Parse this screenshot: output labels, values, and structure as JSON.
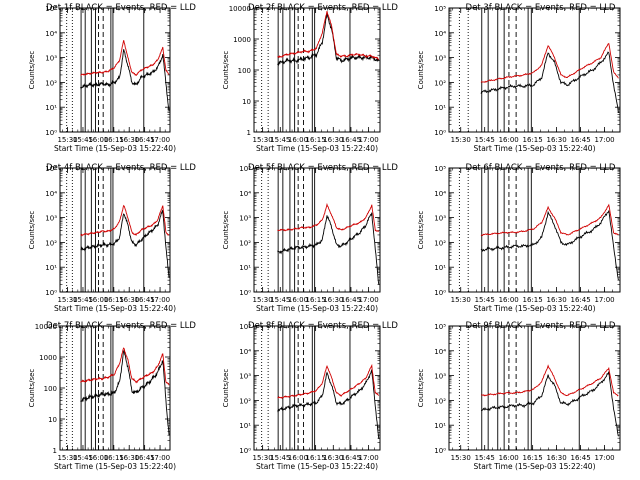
{
  "chart_data": [
    {
      "type": "line",
      "title": "Det 1f BLACK = Events, RED = LLD",
      "xlabel": "Start Time (15-Sep-03 15:22:40)",
      "ylabel": "Counts/sec",
      "yscale": "log",
      "ylim_exp": [
        0,
        5
      ],
      "ytick_labels": [
        "10⁰",
        "10¹",
        "10²",
        "10³",
        "10⁴",
        "10⁵"
      ],
      "x_ticks": [
        "15:30",
        "15:45",
        "16:00",
        "16:15",
        "16:30",
        "16:45",
        "17:00"
      ],
      "series": [
        {
          "name": "BLACK",
          "color": "#000000",
          "x": [
            20,
            28,
            36,
            41,
            47,
            53,
            58,
            62,
            66,
            70,
            74,
            79,
            84,
            90,
            95,
            100,
            103,
            106
          ],
          "y": [
            1.8,
            1.9,
            1.9,
            1.95,
            1.9,
            2.0,
            2.2,
            3.3,
            2.7,
            2.0,
            1.9,
            2.2,
            2.3,
            2.4,
            2.6,
            3.1,
            2.0,
            0.8
          ]
        },
        {
          "name": "RED",
          "color": "#d00000",
          "x": [
            20,
            28,
            36,
            41,
            47,
            53,
            58,
            62,
            66,
            70,
            74,
            79,
            84,
            90,
            95,
            100,
            103,
            106
          ],
          "y": [
            2.3,
            2.35,
            2.4,
            2.4,
            2.45,
            2.6,
            2.9,
            3.7,
            3.0,
            2.4,
            2.3,
            2.5,
            2.6,
            2.7,
            2.9,
            3.4,
            2.5,
            2.3
          ]
        }
      ]
    },
    {
      "type": "line",
      "title": "Det 2f BLACK = Events, RED = LLD",
      "xlabel": "Start Time (15-Sep-03 15:22:40)",
      "ylabel": "Counts/sec",
      "yscale": "log",
      "ylim_exp": [
        0,
        4
      ],
      "ytick_labels": [
        "1",
        "10",
        "100",
        "1000",
        "10000"
      ],
      "x_ticks": [
        "15:30",
        "15:45",
        "16:00",
        "16:15",
        "16:30",
        "16:45",
        "17:00"
      ],
      "series": [
        {
          "name": "BLACK",
          "color": "#000000",
          "x": [
            20,
            28,
            36,
            41,
            47,
            53,
            58,
            62,
            66,
            70,
            74,
            79,
            84,
            90,
            95,
            100,
            103,
            106
          ],
          "y": [
            2.2,
            2.3,
            2.3,
            2.35,
            2.4,
            2.5,
            2.9,
            3.8,
            3.3,
            2.4,
            2.3,
            2.35,
            2.4,
            2.4,
            2.4,
            2.4,
            2.35,
            2.3
          ]
        },
        {
          "name": "RED",
          "color": "#d00000",
          "x": [
            20,
            28,
            36,
            41,
            47,
            53,
            58,
            62,
            66,
            70,
            74,
            79,
            84,
            90,
            95,
            100,
            103,
            106
          ],
          "y": [
            2.4,
            2.5,
            2.55,
            2.6,
            2.6,
            2.7,
            3.2,
            3.9,
            3.4,
            2.5,
            2.45,
            2.45,
            2.5,
            2.5,
            2.45,
            2.45,
            2.4,
            2.35
          ]
        }
      ]
    },
    {
      "type": "line",
      "title": "Det 3f BLACK = Events, RED = LLD",
      "xlabel": "Start Time (15-Sep-03 15:22:40)",
      "ylabel": "Counts/sec",
      "yscale": "log",
      "ylim_exp": [
        0,
        5
      ],
      "ytick_labels": [
        "10⁰",
        "10¹",
        "10²",
        "10³",
        "10⁴",
        "10⁵"
      ],
      "x_ticks": [
        "15:30",
        "15:45",
        "16:00",
        "16:15",
        "16:30",
        "16:45",
        "17:00"
      ],
      "series": [
        {
          "name": "BLACK",
          "color": "#000000",
          "x": [
            20,
            28,
            36,
            41,
            47,
            53,
            58,
            62,
            66,
            70,
            74,
            79,
            84,
            90,
            95,
            100,
            103,
            106
          ],
          "y": [
            1.6,
            1.7,
            1.8,
            1.85,
            1.85,
            1.9,
            2.2,
            3.2,
            2.8,
            2.0,
            1.9,
            2.1,
            2.3,
            2.5,
            2.8,
            3.2,
            1.9,
            0.8
          ]
        },
        {
          "name": "RED",
          "color": "#d00000",
          "x": [
            20,
            28,
            36,
            41,
            47,
            53,
            58,
            62,
            66,
            70,
            74,
            79,
            84,
            90,
            95,
            100,
            103,
            106
          ],
          "y": [
            2.0,
            2.1,
            2.2,
            2.25,
            2.3,
            2.4,
            2.7,
            3.5,
            3.0,
            2.3,
            2.2,
            2.4,
            2.6,
            2.8,
            3.0,
            3.6,
            2.4,
            2.2
          ]
        }
      ]
    },
    {
      "type": "line",
      "title": "Det 4f BLACK = Events, RED = LLD",
      "xlabel": "Start Time (15-Sep-03 15:22:40)",
      "ylabel": "Counts/sec",
      "yscale": "log",
      "ylim_exp": [
        0,
        5
      ],
      "ytick_labels": [
        "10⁰",
        "10¹",
        "10²",
        "10³",
        "10⁴",
        "10⁵"
      ],
      "x_ticks": [
        "15:30",
        "15:45",
        "16:00",
        "16:15",
        "16:30",
        "16:45",
        "17:00"
      ],
      "series": [
        {
          "name": "BLACK",
          "color": "#000000",
          "x": [
            20,
            28,
            36,
            41,
            47,
            53,
            58,
            62,
            66,
            70,
            74,
            79,
            84,
            90,
            95,
            100,
            103,
            106
          ],
          "y": [
            1.7,
            1.8,
            1.85,
            1.9,
            1.9,
            1.95,
            2.2,
            3.2,
            2.7,
            2.0,
            1.9,
            2.1,
            2.3,
            2.5,
            2.7,
            3.3,
            1.8,
            0.6
          ]
        },
        {
          "name": "RED",
          "color": "#d00000",
          "x": [
            20,
            28,
            36,
            41,
            47,
            53,
            58,
            62,
            66,
            70,
            74,
            79,
            84,
            90,
            95,
            100,
            103,
            106
          ],
          "y": [
            2.3,
            2.35,
            2.4,
            2.45,
            2.45,
            2.55,
            2.85,
            3.5,
            3.0,
            2.4,
            2.3,
            2.5,
            2.6,
            2.7,
            2.9,
            3.5,
            2.4,
            2.3
          ]
        }
      ]
    },
    {
      "type": "line",
      "title": "Det 5f BLACK = Events, RED = LLD",
      "xlabel": "Start Time (15-Sep-03 15:22:40)",
      "ylabel": "Counts/sec",
      "yscale": "log",
      "ylim_exp": [
        0,
        5
      ],
      "ytick_labels": [
        "10⁰",
        "10¹",
        "10²",
        "10³",
        "10⁴",
        "10⁵"
      ],
      "x_ticks": [
        "15:30",
        "15:45",
        "16:00",
        "16:15",
        "16:30",
        "16:45",
        "17:00"
      ],
      "series": [
        {
          "name": "BLACK",
          "color": "#000000",
          "x": [
            20,
            28,
            36,
            41,
            47,
            53,
            58,
            62,
            66,
            70,
            74,
            79,
            84,
            90,
            95,
            100,
            103,
            106
          ],
          "y": [
            1.6,
            1.7,
            1.8,
            1.8,
            1.85,
            1.9,
            2.1,
            3.1,
            2.6,
            1.9,
            1.85,
            2.0,
            2.2,
            2.4,
            2.7,
            3.2,
            1.7,
            0.3
          ]
        },
        {
          "name": "RED",
          "color": "#d00000",
          "x": [
            20,
            28,
            36,
            41,
            47,
            53,
            58,
            62,
            66,
            70,
            74,
            79,
            84,
            90,
            95,
            100,
            103,
            106
          ],
          "y": [
            2.5,
            2.5,
            2.55,
            2.6,
            2.6,
            2.7,
            2.9,
            3.5,
            3.1,
            2.6,
            2.5,
            2.6,
            2.7,
            2.8,
            3.0,
            3.5,
            2.5,
            2.45
          ]
        }
      ]
    },
    {
      "type": "line",
      "title": "Det 6f BLACK = Events, RED = LLD",
      "xlabel": "Start Time (15-Sep-03 15:22:40)",
      "ylabel": "Counts/sec",
      "yscale": "log",
      "ylim_exp": [
        0,
        5
      ],
      "ytick_labels": [
        "10⁰",
        "10¹",
        "10²",
        "10³",
        "10⁴",
        "10⁵"
      ],
      "x_ticks": [
        "15:30",
        "15:45",
        "16:00",
        "16:15",
        "16:30",
        "16:45",
        "17:00"
      ],
      "series": [
        {
          "name": "BLACK",
          "color": "#000000",
          "x": [
            20,
            28,
            36,
            41,
            47,
            53,
            58,
            62,
            66,
            70,
            74,
            79,
            84,
            90,
            95,
            100,
            103,
            106
          ],
          "y": [
            1.7,
            1.75,
            1.8,
            1.85,
            1.85,
            1.9,
            2.2,
            3.2,
            2.7,
            2.0,
            1.9,
            2.1,
            2.3,
            2.5,
            2.8,
            3.3,
            1.8,
            0.5
          ]
        },
        {
          "name": "RED",
          "color": "#d00000",
          "x": [
            20,
            28,
            36,
            41,
            47,
            53,
            58,
            62,
            66,
            70,
            74,
            79,
            84,
            90,
            95,
            100,
            103,
            106
          ],
          "y": [
            2.3,
            2.35,
            2.4,
            2.4,
            2.45,
            2.55,
            2.8,
            3.4,
            3.0,
            2.4,
            2.3,
            2.45,
            2.6,
            2.8,
            3.0,
            3.5,
            2.4,
            2.3
          ]
        }
      ]
    },
    {
      "type": "line",
      "title": "Det 7f BLACK = Events, RED = LLD",
      "xlabel": "Start Time (15-Sep-03 15:22:40)",
      "ylabel": "Counts/sec",
      "yscale": "log",
      "ylim_exp": [
        0,
        4
      ],
      "ytick_labels": [
        "1",
        "10",
        "100",
        "1000",
        "10000"
      ],
      "x_ticks": [
        "15:30",
        "15:45",
        "16:00",
        "16:15",
        "16:30",
        "16:45",
        "17:00"
      ],
      "series": [
        {
          "name": "BLACK",
          "color": "#000000",
          "x": [
            20,
            28,
            36,
            41,
            47,
            53,
            58,
            62,
            66,
            70,
            74,
            79,
            84,
            90,
            95,
            100,
            103,
            106
          ],
          "y": [
            1.6,
            1.7,
            1.75,
            1.8,
            1.8,
            1.85,
            2.2,
            3.2,
            2.7,
            1.9,
            1.85,
            2.0,
            2.1,
            2.3,
            2.5,
            2.9,
            1.6,
            0.5
          ]
        },
        {
          "name": "RED",
          "color": "#d00000",
          "x": [
            20,
            28,
            36,
            41,
            47,
            53,
            58,
            62,
            66,
            70,
            74,
            79,
            84,
            90,
            95,
            100,
            103,
            106
          ],
          "y": [
            2.2,
            2.25,
            2.3,
            2.3,
            2.35,
            2.45,
            2.8,
            3.3,
            2.9,
            2.3,
            2.2,
            2.3,
            2.4,
            2.5,
            2.7,
            3.1,
            2.2,
            2.1
          ]
        }
      ]
    },
    {
      "type": "line",
      "title": "Det 8f BLACK = Events, RED = LLD",
      "xlabel": "Start Time (15-Sep-03 15:22:40)",
      "ylabel": "Counts/sec",
      "yscale": "log",
      "ylim_exp": [
        0,
        5
      ],
      "ytick_labels": [
        "10⁰",
        "10¹",
        "10²",
        "10³",
        "10⁴",
        "10⁵"
      ],
      "x_ticks": [
        "15:30",
        "15:45",
        "16:00",
        "16:15",
        "16:30",
        "16:45",
        "17:00"
      ],
      "series": [
        {
          "name": "BLACK",
          "color": "#000000",
          "x": [
            20,
            28,
            36,
            41,
            47,
            53,
            58,
            62,
            66,
            70,
            74,
            79,
            84,
            90,
            95,
            100,
            103,
            106
          ],
          "y": [
            1.6,
            1.7,
            1.8,
            1.8,
            1.85,
            1.9,
            2.2,
            3.1,
            2.6,
            1.9,
            1.85,
            2.0,
            2.2,
            2.4,
            2.7,
            3.2,
            1.8,
            0.4
          ]
        },
        {
          "name": "RED",
          "color": "#d00000",
          "x": [
            20,
            28,
            36,
            41,
            47,
            53,
            58,
            62,
            66,
            70,
            74,
            79,
            84,
            90,
            95,
            100,
            103,
            106
          ],
          "y": [
            2.1,
            2.15,
            2.2,
            2.25,
            2.3,
            2.4,
            2.7,
            3.4,
            2.9,
            2.3,
            2.2,
            2.35,
            2.5,
            2.7,
            2.9,
            3.4,
            2.3,
            2.2
          ]
        }
      ]
    },
    {
      "type": "line",
      "title": "Det 9f BLACK = Events, RED = LLD",
      "xlabel": "Start Time (15-Sep-03 15:22:40)",
      "ylabel": "Counts/sec",
      "yscale": "log",
      "ylim_exp": [
        0,
        5
      ],
      "ytick_labels": [
        "10⁰",
        "10¹",
        "10²",
        "10³",
        "10⁴",
        "10⁵"
      ],
      "x_ticks": [
        "15:30",
        "15:45",
        "16:00",
        "16:15",
        "16:30",
        "16:45",
        "17:00"
      ],
      "series": [
        {
          "name": "BLACK",
          "color": "#000000",
          "x": [
            20,
            28,
            36,
            41,
            47,
            53,
            58,
            62,
            66,
            70,
            74,
            79,
            84,
            90,
            95,
            100,
            103,
            106
          ],
          "y": [
            1.6,
            1.7,
            1.75,
            1.8,
            1.8,
            1.9,
            2.2,
            3.0,
            2.6,
            1.9,
            1.85,
            2.0,
            2.2,
            2.4,
            2.7,
            3.1,
            1.7,
            0.5
          ]
        },
        {
          "name": "RED",
          "color": "#d00000",
          "x": [
            20,
            28,
            36,
            41,
            47,
            53,
            58,
            62,
            66,
            70,
            74,
            79,
            84,
            90,
            95,
            100,
            103,
            106
          ],
          "y": [
            2.2,
            2.25,
            2.3,
            2.3,
            2.35,
            2.45,
            2.75,
            3.4,
            2.9,
            2.3,
            2.2,
            2.35,
            2.5,
            2.7,
            2.9,
            3.3,
            2.3,
            2.2
          ]
        }
      ]
    }
  ]
}
